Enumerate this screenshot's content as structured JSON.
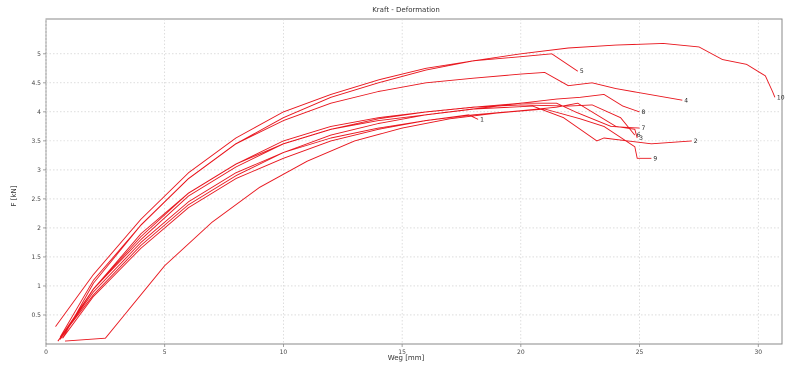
{
  "chart_data": {
    "type": "line",
    "title": "Kraft - Deformation",
    "xlabel": "Weg [mm]",
    "ylabel": "F [kN]",
    "xlim": [
      0,
      31
    ],
    "ylim": [
      0,
      5.6
    ],
    "x_ticks": [
      0,
      5,
      10,
      15,
      20,
      25,
      30
    ],
    "x_tick_labels": [
      "0",
      "5",
      "10",
      "15",
      "20",
      "25",
      "30"
    ],
    "y_ticks": [
      0.5,
      1,
      1.5,
      2,
      2.5,
      3,
      3.5,
      4,
      4.5,
      5
    ],
    "y_tick_labels": [
      "0.5",
      "1",
      "1.5",
      "2",
      "2.5",
      "3",
      "3.5",
      "4",
      "4.5",
      "5"
    ],
    "grid": true,
    "color": "#e8141c",
    "series": [
      {
        "label": "1",
        "points": [
          [
            0.6,
            0.1
          ],
          [
            2,
            0.9
          ],
          [
            4,
            1.75
          ],
          [
            6,
            2.45
          ],
          [
            8,
            2.95
          ],
          [
            10,
            3.3
          ],
          [
            12,
            3.55
          ],
          [
            14,
            3.72
          ],
          [
            16,
            3.85
          ],
          [
            17.8,
            3.95
          ],
          [
            18.2,
            3.87
          ]
        ]
      },
      {
        "label": "2",
        "points": [
          [
            0.5,
            0.05
          ],
          [
            2,
            0.85
          ],
          [
            4,
            1.7
          ],
          [
            6,
            2.4
          ],
          [
            8,
            2.9
          ],
          [
            10,
            3.3
          ],
          [
            12,
            3.6
          ],
          [
            14,
            3.8
          ],
          [
            16,
            3.95
          ],
          [
            18,
            4.05
          ],
          [
            20.5,
            4.1
          ],
          [
            21.8,
            3.9
          ],
          [
            23.2,
            3.5
          ],
          [
            23.5,
            3.55
          ],
          [
            25.5,
            3.45
          ],
          [
            27.2,
            3.5
          ]
        ]
      },
      {
        "label": "3",
        "points": [
          [
            0.7,
            0.1
          ],
          [
            2,
            0.82
          ],
          [
            4,
            1.65
          ],
          [
            6,
            2.35
          ],
          [
            8,
            2.85
          ],
          [
            10,
            3.2
          ],
          [
            12,
            3.5
          ],
          [
            14,
            3.7
          ],
          [
            16,
            3.85
          ],
          [
            18,
            3.95
          ],
          [
            20,
            4.02
          ],
          [
            21.5,
            4.08
          ],
          [
            22.4,
            4.15
          ],
          [
            24,
            3.75
          ],
          [
            24.8,
            3.7
          ],
          [
            24.9,
            3.55
          ]
        ]
      },
      {
        "label": "4",
        "points": [
          [
            0.6,
            0.12
          ],
          [
            2,
            1.1
          ],
          [
            4,
            2.05
          ],
          [
            6,
            2.85
          ],
          [
            8,
            3.45
          ],
          [
            10,
            3.85
          ],
          [
            12,
            4.15
          ],
          [
            14,
            4.35
          ],
          [
            16,
            4.5
          ],
          [
            18,
            4.58
          ],
          [
            20,
            4.65
          ],
          [
            21,
            4.68
          ],
          [
            22,
            4.45
          ],
          [
            23,
            4.5
          ],
          [
            24,
            4.4
          ],
          [
            26.8,
            4.2
          ]
        ]
      },
      {
        "label": "5",
        "points": [
          [
            0.4,
            0.3
          ],
          [
            2,
            1.2
          ],
          [
            4,
            2.15
          ],
          [
            6,
            2.95
          ],
          [
            8,
            3.55
          ],
          [
            10,
            4.0
          ],
          [
            12,
            4.3
          ],
          [
            14,
            4.55
          ],
          [
            16,
            4.75
          ],
          [
            18,
            4.88
          ],
          [
            20,
            4.95
          ],
          [
            21.3,
            5.0
          ],
          [
            22.4,
            4.7
          ]
        ]
      },
      {
        "label": "6",
        "points": [
          [
            0.6,
            0.08
          ],
          [
            2,
            0.95
          ],
          [
            4,
            1.85
          ],
          [
            6,
            2.6
          ],
          [
            8,
            3.1
          ],
          [
            10,
            3.5
          ],
          [
            12,
            3.75
          ],
          [
            14,
            3.9
          ],
          [
            16,
            4.0
          ],
          [
            18,
            4.08
          ],
          [
            20,
            4.12
          ],
          [
            22,
            4.1
          ],
          [
            23,
            4.12
          ],
          [
            24.2,
            3.9
          ],
          [
            24.8,
            3.6
          ]
        ]
      },
      {
        "label": "7",
        "points": [
          [
            0.6,
            0.08
          ],
          [
            2,
            0.95
          ],
          [
            4,
            1.8
          ],
          [
            6,
            2.55
          ],
          [
            8,
            3.05
          ],
          [
            10,
            3.45
          ],
          [
            12,
            3.7
          ],
          [
            14,
            3.85
          ],
          [
            16,
            3.95
          ],
          [
            18,
            4.05
          ],
          [
            20,
            4.15
          ],
          [
            21.5,
            4.15
          ],
          [
            22.3,
            4.0
          ],
          [
            23.8,
            3.75
          ],
          [
            25,
            3.72
          ]
        ]
      },
      {
        "label": "8",
        "points": [
          [
            0.5,
            0.05
          ],
          [
            2,
            0.95
          ],
          [
            4,
            1.9
          ],
          [
            6,
            2.6
          ],
          [
            8,
            3.1
          ],
          [
            10,
            3.45
          ],
          [
            12,
            3.7
          ],
          [
            14,
            3.88
          ],
          [
            16,
            4.0
          ],
          [
            18,
            4.08
          ],
          [
            20,
            4.15
          ],
          [
            21.5,
            4.22
          ],
          [
            22.5,
            4.25
          ],
          [
            23.5,
            4.3
          ],
          [
            24.3,
            4.1
          ],
          [
            25,
            4.0
          ]
        ]
      },
      {
        "label": "9",
        "points": [
          [
            0.8,
            0.05
          ],
          [
            2.5,
            0.1
          ],
          [
            3.5,
            0.6
          ],
          [
            5,
            1.35
          ],
          [
            7,
            2.1
          ],
          [
            9,
            2.7
          ],
          [
            11,
            3.15
          ],
          [
            13,
            3.5
          ],
          [
            15,
            3.72
          ],
          [
            17,
            3.88
          ],
          [
            19,
            3.98
          ],
          [
            21,
            4.05
          ],
          [
            22.5,
            3.88
          ],
          [
            23.5,
            3.75
          ],
          [
            24.8,
            3.4
          ],
          [
            24.9,
            3.2
          ],
          [
            25.5,
            3.2
          ]
        ]
      },
      {
        "label": "10",
        "points": [
          [
            0.7,
            0.1
          ],
          [
            2,
            1.05
          ],
          [
            4,
            2.05
          ],
          [
            6,
            2.85
          ],
          [
            8,
            3.45
          ],
          [
            10,
            3.9
          ],
          [
            12,
            4.25
          ],
          [
            14,
            4.5
          ],
          [
            16,
            4.72
          ],
          [
            18,
            4.88
          ],
          [
            20,
            5.0
          ],
          [
            22,
            5.1
          ],
          [
            24,
            5.15
          ],
          [
            26,
            5.18
          ],
          [
            27.5,
            5.12
          ],
          [
            28.5,
            4.9
          ],
          [
            29.5,
            4.82
          ],
          [
            30.3,
            4.62
          ],
          [
            30.6,
            4.35
          ],
          [
            30.7,
            4.25
          ]
        ]
      }
    ]
  }
}
